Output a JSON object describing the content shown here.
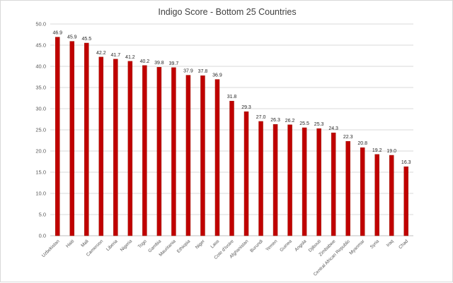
{
  "chart_data": {
    "type": "bar",
    "title": "Indigo Score - Bottom 25 Countries",
    "xlabel": "",
    "ylabel": "",
    "ylim": [
      0,
      50
    ],
    "y_ticks": [
      "0.0",
      "5.0",
      "10.0",
      "15.0",
      "20.0",
      "25.0",
      "30.0",
      "35.0",
      "40.0",
      "45.0",
      "50.0"
    ],
    "grid": true,
    "bar_color": "#c00000",
    "categories": [
      "Uzbekistan",
      "Haiti",
      "Mali",
      "Cameroon",
      "Liberia",
      "Nigeria",
      "Togo",
      "Gambia",
      "Mauritania",
      "Ethiopia",
      "Niger",
      "Laos",
      "Cote d'Ivoire",
      "Afghanistan",
      "Burundi",
      "Yemen",
      "Guinea",
      "Angola",
      "Djibouti",
      "Zimbabwe",
      "Central African Republic",
      "Myanmar",
      "Syria",
      "Iraq",
      "Chad"
    ],
    "values": [
      46.9,
      45.9,
      45.5,
      42.2,
      41.7,
      41.2,
      40.2,
      39.8,
      39.7,
      37.9,
      37.8,
      36.9,
      31.8,
      29.3,
      27.0,
      26.3,
      26.2,
      25.5,
      25.3,
      24.3,
      22.3,
      20.8,
      19.2,
      19.0,
      16.3
    ],
    "data_labels": [
      "46.9",
      "45.9",
      "45.5",
      "42.2",
      "41.7",
      "41.2",
      "40.2",
      "39.8",
      "39.7",
      "37.9",
      "37.8",
      "36.9",
      "31.8",
      "29.3",
      "27.0",
      "26.3",
      "26.2",
      "25.5",
      "25.3",
      "24.3",
      "22.3",
      "20.8",
      "19.2",
      "19.0",
      "16.3"
    ]
  }
}
